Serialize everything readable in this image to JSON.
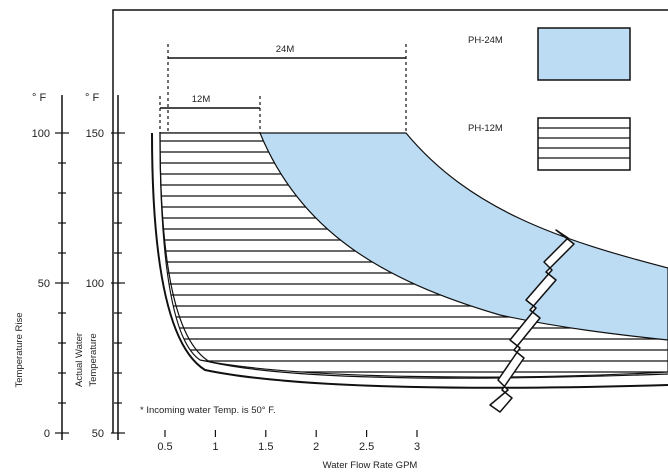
{
  "chart_data": {
    "type": "area",
    "xlabel": "Water Flow Rate GPM",
    "x_ticks": [
      "0.5",
      "1",
      "1.5",
      "2",
      "2.5",
      "3"
    ],
    "x_tick_values": [
      0.5,
      1,
      1.5,
      2,
      2.5,
      3
    ],
    "x_range": [
      0,
      3.7
    ],
    "y_axes": [
      {
        "label": "Temperature Rise",
        "unit": "° F",
        "ticks": [
          "0",
          "50",
          "100"
        ],
        "tick_values": [
          0,
          50,
          100
        ]
      },
      {
        "label": "Actual Water Temperature",
        "unit": "° F",
        "ticks": [
          "50",
          "100",
          "150"
        ],
        "tick_values": [
          50,
          100,
          150
        ]
      }
    ],
    "y_range": [
      0,
      100
    ],
    "dimension_labels": [
      "24M",
      "12M"
    ],
    "series": [
      {
        "name": "PH-24M",
        "fill": "#bcdcf3",
        "pattern": "solid",
        "x": [
          0.5,
          1.0,
          1.5,
          2.0,
          2.5,
          2.85,
          3.0,
          3.5
        ],
        "y": [
          100,
          100,
          100,
          100,
          100,
          100,
          95,
          80
        ]
      },
      {
        "name": "PH-12M",
        "fill": "#ffffff",
        "pattern": "horizontal-stripes",
        "x": [
          0.45,
          1.0,
          1.45,
          2.0,
          2.5,
          3.0,
          3.5
        ],
        "y": [
          100,
          100,
          100,
          72,
          54,
          42,
          35
        ]
      }
    ],
    "legend": [
      "PH-24M",
      "PH-12M"
    ],
    "legend_position": "top-right",
    "annotation": "* Incoming water Temp. is 50° F.",
    "grid": false
  }
}
